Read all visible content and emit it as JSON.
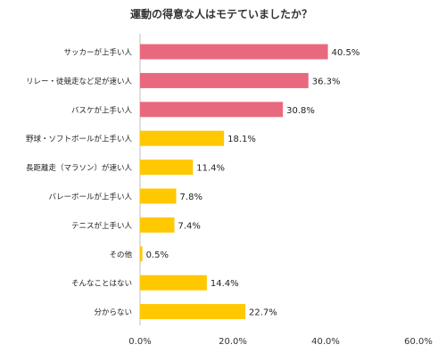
{
  "chart_data": {
    "type": "bar",
    "orientation": "horizontal",
    "title": "運動の得意な人はモテていましたか？",
    "categories": [
      "サッカーが上手い人",
      "リレー・徒競走など足が速い人",
      "バスケが上手い人",
      "野球・ソフトボールが上手い人",
      "長距離走（マラソン）が速い人",
      "バレーボールが上手い人",
      "テニスが上手い人",
      "その他",
      "そんなことはない",
      "分からない"
    ],
    "values": [
      40.5,
      36.3,
      30.8,
      18.1,
      11.4,
      7.8,
      7.4,
      0.5,
      14.4,
      22.7
    ],
    "value_labels": [
      "40.5%",
      "36.3%",
      "30.8%",
      "18.1%",
      "11.4%",
      "7.8%",
      "7.4%",
      "0.5%",
      "14.4%",
      "22.7%"
    ],
    "bar_colors": [
      "#e8697d",
      "#e8697d",
      "#e8697d",
      "#ffc800",
      "#ffc800",
      "#ffc800",
      "#ffc800",
      "#ffc800",
      "#ffc800",
      "#ffc800"
    ],
    "xlim": [
      0,
      60
    ],
    "xticks": [
      0,
      20,
      40,
      60
    ],
    "xtick_labels": [
      "0.0%",
      "20.0%",
      "40.0%",
      "60.0%"
    ],
    "xlabel": "",
    "ylabel": "",
    "grid": false,
    "legend": "none"
  }
}
